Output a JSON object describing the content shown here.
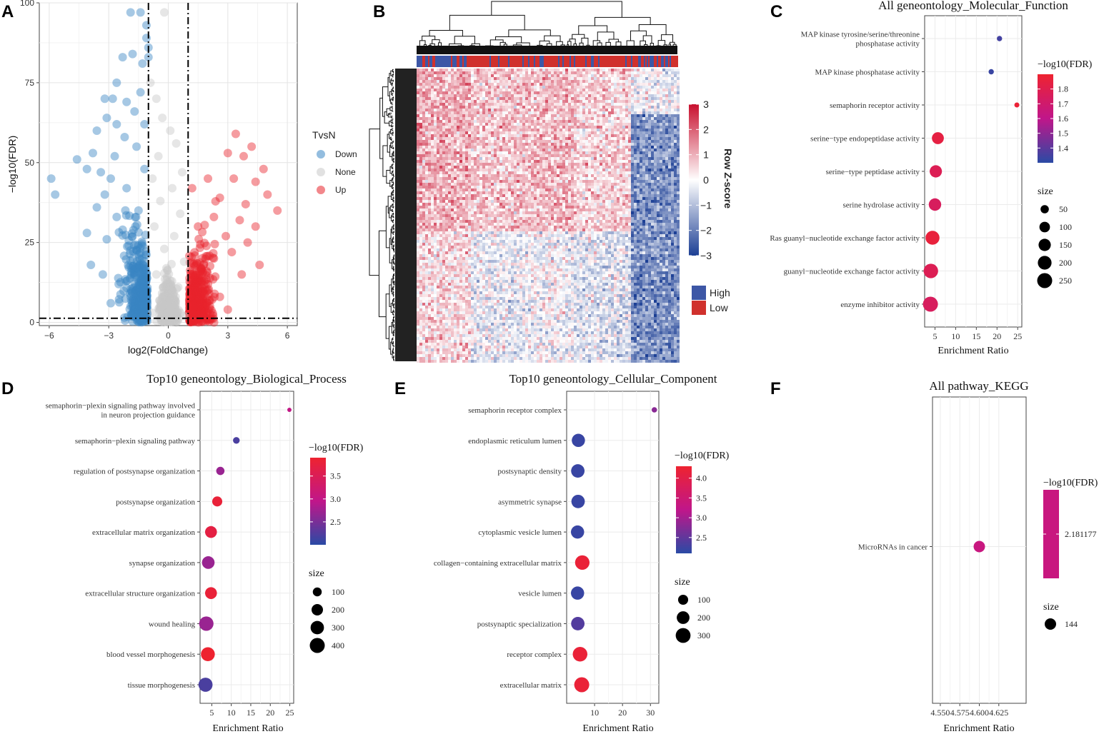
{
  "panels": {
    "A": {
      "letter": "A",
      "chart_data": {
        "type": "scatter",
        "title": "",
        "xlabel": "log2(FoldChange)",
        "ylabel": "−log10(FDR)",
        "xlim": [
          -6.5,
          6.5
        ],
        "ylim": [
          -1,
          100
        ],
        "xticks": [
          "−6",
          "−3",
          "0",
          "3",
          "6"
        ],
        "xtick_values": [
          -6,
          -3,
          0,
          3,
          6
        ],
        "yticks": [
          "0",
          "25",
          "50",
          "75",
          "100"
        ],
        "ytick_values": [
          0,
          25,
          50,
          75,
          100
        ],
        "vlines": [
          -1,
          1
        ],
        "hline": 1.3,
        "legend_title": "TvsN",
        "legend": [
          {
            "name": "Down",
            "color": "#3a86c4"
          },
          {
            "name": "None",
            "color": "#c8c8c8"
          },
          {
            "name": "Up",
            "color": "#e8242c"
          }
        ],
        "series": [
          {
            "name": "Down",
            "color": "#3a86c4",
            "points": [
              [
                -1.9,
                97
              ],
              [
                -1.4,
                97
              ],
              [
                -1.1,
                93
              ],
              [
                -1.1,
                89
              ],
              [
                -1.0,
                86
              ],
              [
                -1.0,
                83
              ],
              [
                -2.3,
                83
              ],
              [
                -1.8,
                84
              ],
              [
                -1.3,
                81
              ],
              [
                -2.6,
                75
              ],
              [
                -3.2,
                70
              ],
              [
                -2.8,
                70
              ],
              [
                -2.1,
                69
              ],
              [
                -1.7,
                66
              ],
              [
                -3.1,
                64
              ],
              [
                -2.6,
                62
              ],
              [
                -1.2,
                62
              ],
              [
                -3.6,
                60
              ],
              [
                -2.2,
                58
              ],
              [
                -4.6,
                51
              ],
              [
                -3.8,
                53
              ],
              [
                -5.9,
                45
              ],
              [
                -5.7,
                40
              ],
              [
                -4.1,
                48
              ],
              [
                -3.4,
                47
              ],
              [
                -2.9,
                45
              ],
              [
                -3.2,
                40
              ],
              [
                -2.1,
                42
              ],
              [
                -3.6,
                36
              ],
              [
                -2.6,
                33
              ],
              [
                -4.1,
                28
              ],
              [
                -3.1,
                26
              ],
              [
                -2.3,
                29
              ],
              [
                -3.9,
                18
              ],
              [
                -3.3,
                15
              ],
              [
                -2.5,
                12
              ],
              [
                -1.6,
                8
              ],
              [
                -1.3,
                5
              ],
              [
                -2.9,
                6
              ],
              [
                -1.8,
                20
              ],
              [
                -1.5,
                35
              ],
              [
                -1.2,
                48
              ],
              [
                -2.0,
                24
              ],
              [
                -2.7,
                52
              ],
              [
                -1.6,
                55
              ],
              [
                -1.4,
                72
              ]
            ]
          },
          {
            "name": "None",
            "color": "#c8c8c8",
            "points": [
              [
                -0.2,
                97
              ],
              [
                -0.9,
                75
              ],
              [
                -0.6,
                70
              ],
              [
                -0.3,
                64
              ],
              [
                0.1,
                60
              ],
              [
                0.4,
                56
              ],
              [
                -0.5,
                52
              ],
              [
                0.7,
                47
              ],
              [
                -0.8,
                45
              ],
              [
                0.2,
                42
              ],
              [
                -0.4,
                38
              ],
              [
                0.6,
                34
              ],
              [
                -0.7,
                30
              ],
              [
                0.3,
                27
              ],
              [
                -0.2,
                23
              ],
              [
                0.8,
                19
              ],
              [
                -0.6,
                15
              ],
              [
                0.5,
                11
              ],
              [
                -0.3,
                8
              ],
              [
                0.1,
                4
              ],
              [
                0.0,
                1
              ],
              [
                -0.8,
                3
              ],
              [
                0.8,
                2
              ]
            ]
          },
          {
            "name": "Up",
            "color": "#e8242c",
            "points": [
              [
                3.4,
                59
              ],
              [
                3.8,
                52
              ],
              [
                4.2,
                55
              ],
              [
                3.0,
                53
              ],
              [
                4.8,
                48
              ],
              [
                3.3,
                45
              ],
              [
                4.4,
                44
              ],
              [
                5.0,
                40
              ],
              [
                5.5,
                35
              ],
              [
                3.9,
                37
              ],
              [
                2.6,
                39
              ],
              [
                3.6,
                32
              ],
              [
                4.4,
                30
              ],
              [
                2.9,
                27
              ],
              [
                4.0,
                25
              ],
              [
                3.2,
                22
              ],
              [
                4.6,
                18
              ],
              [
                2.3,
                20
              ],
              [
                3.7,
                15
              ],
              [
                2.0,
                12
              ],
              [
                1.7,
                9
              ],
              [
                1.3,
                5
              ],
              [
                2.6,
                8
              ],
              [
                3.0,
                4
              ],
              [
                1.5,
                30
              ],
              [
                2.0,
                45
              ],
              [
                1.4,
                18
              ],
              [
                1.2,
                42
              ],
              [
                2.3,
                33
              ]
            ]
          }
        ]
      }
    },
    "B": {
      "letter": "B",
      "chart_data": {
        "type": "heatmap",
        "title": "",
        "colorbar_title": "Row Z-score",
        "colorbar_ticks": [
          "3",
          "2",
          "1",
          "0",
          "−1",
          "−2",
          "−3"
        ],
        "colorbar_range": [
          -3,
          3
        ],
        "colors": {
          "high": "#c8102e",
          "mid": "#ffffff",
          "low": "#1c3f95"
        },
        "annotation_legend": [
          {
            "name": "High",
            "color": "#3d57a6"
          },
          {
            "name": "Low",
            "color": "#d0312d"
          }
        ],
        "column_blocks": [
          {
            "start": 0.0,
            "end": 0.2,
            "mean": 0.8
          },
          {
            "start": 0.2,
            "end": 0.4,
            "mean": 0.35
          },
          {
            "start": 0.4,
            "end": 0.6,
            "mean": 0.5
          },
          {
            "start": 0.6,
            "end": 0.82,
            "mean": 0.2
          },
          {
            "start": 0.82,
            "end": 1.0,
            "mean": -1.7
          }
        ],
        "row_blocks": [
          {
            "start": 0.0,
            "end": 0.55,
            "mean": 0.3
          },
          {
            "start": 0.55,
            "end": 1.0,
            "mean": -0.5
          }
        ]
      }
    },
    "C": {
      "letter": "C",
      "chart_data": {
        "type": "scatter",
        "title": "All geneontology_Molecular_Function",
        "xlabel": "Enrichment Ratio",
        "ylabel": "",
        "xlim": [
          2.5,
          26
        ],
        "xticks": [
          "5",
          "10",
          "15",
          "20",
          "25"
        ],
        "xtick_values": [
          5,
          10,
          15,
          20,
          25
        ],
        "color_legend_title": "−log10(FDR)",
        "color_range": [
          1.3,
          1.9
        ],
        "color_ticks": [
          "1.8",
          "1.7",
          "1.6",
          "1.5",
          "1.4"
        ],
        "color_tick_values": [
          1.8,
          1.7,
          1.6,
          1.5,
          1.4
        ],
        "size_legend_title": "size",
        "size_legend": [
          "50",
          "100",
          "150",
          "200",
          "250"
        ],
        "size_legend_values": [
          50,
          100,
          150,
          200,
          250
        ],
        "categories": [
          "MAP kinase tyrosine/serine/threonine phosphatase activity",
          "MAP kinase phosphatase activity",
          "semaphorin receptor activity",
          "serine−type endopeptidase activity",
          "serine−type peptidase activity",
          "serine hydrolase activity",
          "Ras guanyl−nucleotide exchange factor activity",
          "guanyl−nucleotide exchange factor activity",
          "enzyme inhibitor activity"
        ],
        "category_lines": [
          [
            "MAP kinase tyrosine/serine/threonine",
            "phosphatase activity"
          ],
          [
            "MAP kinase phosphatase activity"
          ],
          [
            "semaphorin receptor activity"
          ],
          [
            "serine−type endopeptidase activity"
          ],
          [
            "serine−type peptidase activity"
          ],
          [
            "serine hydrolase activity"
          ],
          [
            "Ras guanyl−nucleotide exchange factor activity"
          ],
          [
            "guanyl−nucleotide exchange factor activity"
          ],
          [
            "enzyme inhibitor activity"
          ]
        ],
        "enrichment_ratio": [
          20.6,
          18.6,
          24.8,
          5.7,
          5.2,
          5.0,
          4.4,
          4.0,
          3.9
        ],
        "fdr": [
          1.35,
          1.33,
          1.88,
          1.84,
          1.78,
          1.75,
          1.86,
          1.78,
          1.75
        ],
        "size": [
          10,
          10,
          8,
          140,
          150,
          155,
          210,
          230,
          250
        ]
      }
    },
    "D": {
      "letter": "D",
      "chart_data": {
        "type": "scatter",
        "title": "Top10 geneontology_Biological_Process",
        "xlabel": "Enrichment Ratio",
        "ylabel": "",
        "xlim": [
          2,
          26
        ],
        "xticks": [
          "5",
          "10",
          "15",
          "20",
          "25"
        ],
        "xtick_values": [
          5,
          10,
          15,
          20,
          25
        ],
        "color_legend_title": "−log10(FDR)",
        "color_range": [
          2.0,
          3.9
        ],
        "color_ticks": [
          "3.5",
          "3.0",
          "2.5"
        ],
        "color_tick_values": [
          3.5,
          3.0,
          2.5
        ],
        "size_legend_title": "size",
        "size_legend": [
          "100",
          "200",
          "300",
          "400"
        ],
        "size_legend_values": [
          100,
          200,
          300,
          400
        ],
        "categories": [
          "semaphorin−plexin signaling pathway involved in neuron projection guidance",
          "semaphorin−plexin signaling pathway",
          "regulation of postsynapse organization",
          "postsynapse organization",
          "extracellular matrix organization",
          "synapse organization",
          "extracellular structure organization",
          "wound healing",
          "blood vessel morphogenesis",
          "tissue morphogenesis"
        ],
        "category_lines": [
          [
            "semaphorin−plexin signaling pathway involved",
            "in neuron projection guidance"
          ],
          [
            "semaphorin−plexin signaling pathway"
          ],
          [
            "regulation of postsynapse organization"
          ],
          [
            "postsynapse organization"
          ],
          [
            "extracellular matrix organization"
          ],
          [
            "synapse organization"
          ],
          [
            "extracellular structure organization"
          ],
          [
            "wound healing"
          ],
          [
            "blood vessel morphogenesis"
          ],
          [
            "tissue morphogenesis"
          ]
        ],
        "enrichment_ratio": [
          24.9,
          11.3,
          7.2,
          6.4,
          4.8,
          4.1,
          4.8,
          3.6,
          4.0,
          3.4
        ],
        "fdr": [
          3.0,
          2.2,
          2.7,
          3.8,
          3.7,
          2.7,
          3.8,
          2.7,
          3.9,
          2.2
        ],
        "size": [
          5,
          40,
          80,
          140,
          220,
          260,
          220,
          360,
          330,
          340
        ]
      }
    },
    "E": {
      "letter": "E",
      "chart_data": {
        "type": "scatter",
        "title": "Top10 geneontology_Cellular_Component",
        "xlabel": "Enrichment Ratio",
        "ylabel": "",
        "xlim": [
          0,
          33
        ],
        "xticks": [
          "10",
          "20",
          "30"
        ],
        "xtick_values": [
          10,
          20,
          30
        ],
        "color_legend_title": "−log10(FDR)",
        "color_range": [
          2.1,
          4.3
        ],
        "color_ticks": [
          "4.0",
          "3.5",
          "3.0",
          "2.5"
        ],
        "color_tick_values": [
          4.0,
          3.5,
          3.0,
          2.5
        ],
        "size_legend_title": "size",
        "size_legend": [
          "100",
          "200",
          "300"
        ],
        "size_legend_values": [
          100,
          200,
          300
        ],
        "categories": [
          "semaphorin receptor complex",
          "endoplasmic reticulum lumen",
          "postsynaptic density",
          "asymmetric synapse",
          "cytoplasmic vesicle lumen",
          "collagen−containing extracellular matrix",
          "vesicle lumen",
          "postsynaptic specialization",
          "receptor complex",
          "extracellular matrix"
        ],
        "category_lines": [
          [
            "semaphorin receptor complex"
          ],
          [
            "endoplasmic reticulum lumen"
          ],
          [
            "postsynaptic density"
          ],
          [
            "asymmetric synapse"
          ],
          [
            "cytoplasmic vesicle lumen"
          ],
          [
            "collagen−containing extracellular matrix"
          ],
          [
            "vesicle lumen"
          ],
          [
            "postsynaptic specialization"
          ],
          [
            "receptor complex"
          ],
          [
            "extracellular matrix"
          ]
        ],
        "enrichment_ratio": [
          31.4,
          4.2,
          4.0,
          4.1,
          3.9,
          5.6,
          3.9,
          4.0,
          4.8,
          5.4
        ],
        "fdr": [
          2.8,
          2.2,
          2.2,
          2.2,
          2.2,
          4.2,
          2.2,
          2.4,
          4.2,
          4.2
        ],
        "size": [
          8,
          220,
          230,
          230,
          220,
          280,
          220,
          230,
          290,
          310
        ]
      }
    },
    "F": {
      "letter": "F",
      "chart_data": {
        "type": "scatter",
        "title": "All pathway_KEGG",
        "xlabel": "Enrichment Ratio",
        "ylabel": "",
        "xlim": [
          4.54,
          4.66
        ],
        "xticks": [
          "4.550",
          "4.575",
          "4.600",
          "4.625"
        ],
        "xtick_values": [
          4.55,
          4.575,
          4.6,
          4.625
        ],
        "color_legend_title": "−log10(FDR)",
        "color_ticks": [
          "2.181177"
        ],
        "color_value": "#c8177f",
        "size_legend_title": "size",
        "size_legend": [
          "144"
        ],
        "size_legend_values": [
          144
        ],
        "categories": [
          "MicroRNAs in cancer"
        ],
        "category_lines": [
          [
            "MicroRNAs in cancer"
          ]
        ],
        "enrichment_ratio": [
          4.6
        ],
        "fdr": [
          2.181177
        ],
        "size": [
          144
        ]
      }
    }
  }
}
